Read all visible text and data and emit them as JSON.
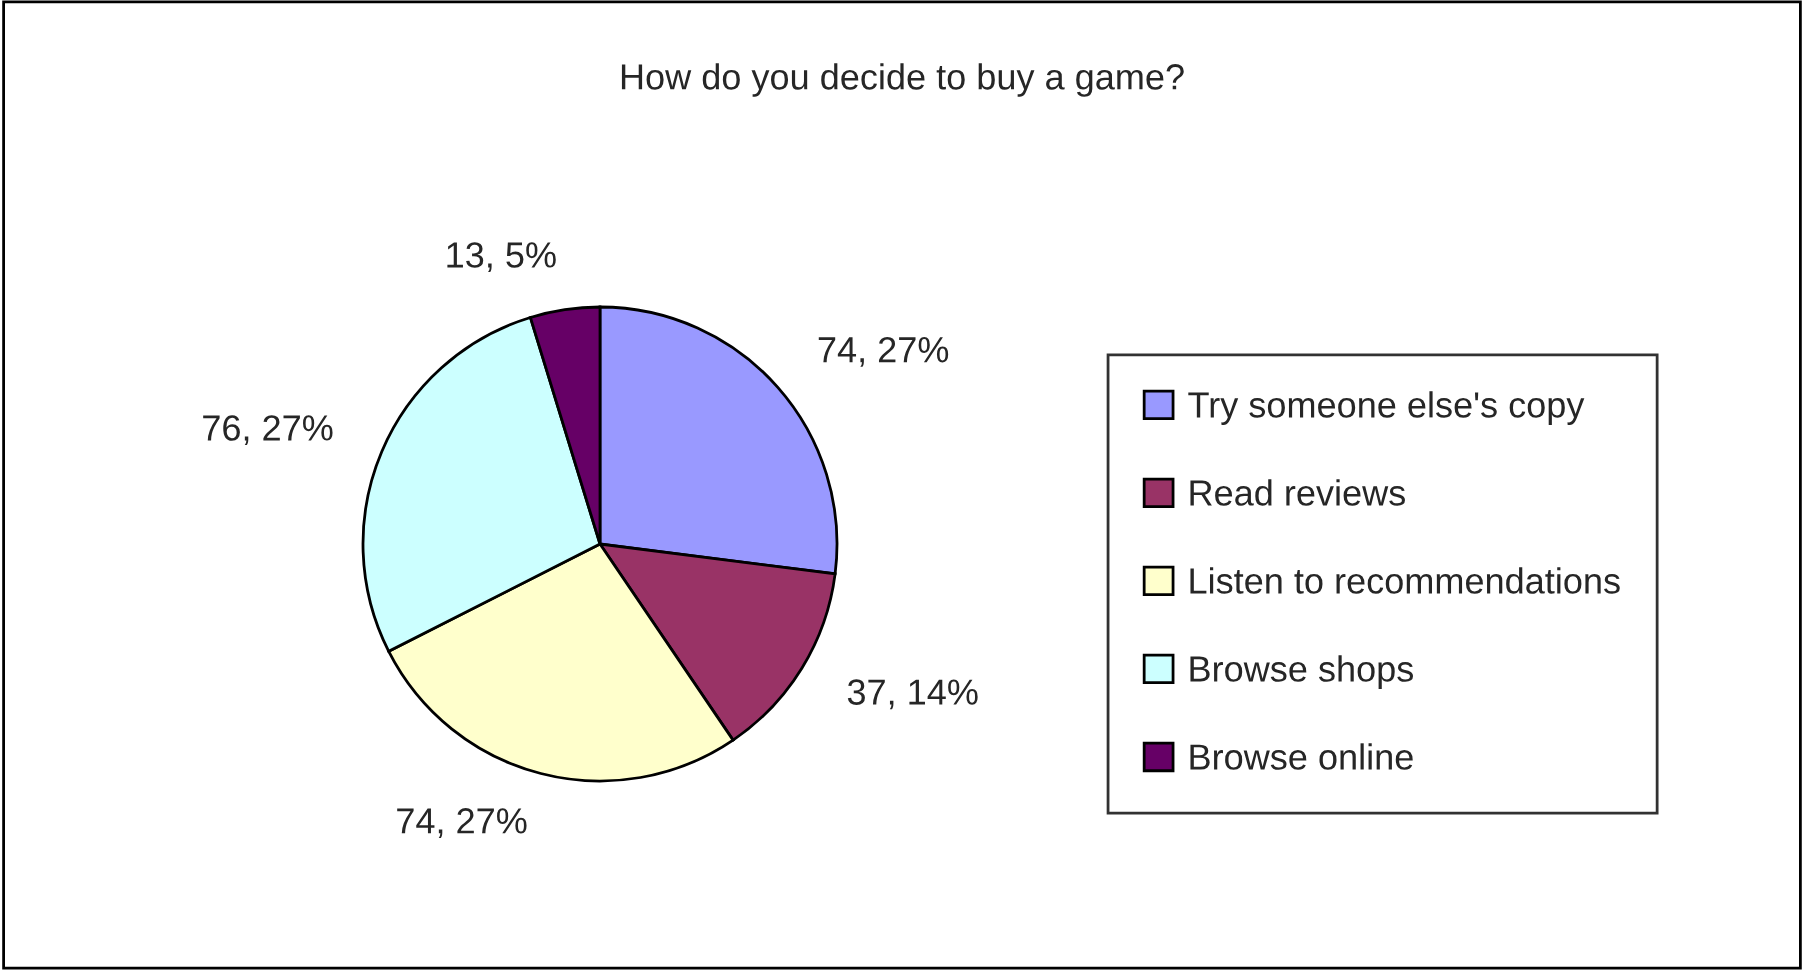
{
  "chart_data": {
    "type": "pie",
    "title": "How do you decide to buy a game?",
    "categories": [
      "Try someone else's copy",
      "Read reviews",
      "Listen to recommendations",
      "Browse shops",
      "Browse online"
    ],
    "values": [
      74,
      37,
      74,
      76,
      13
    ],
    "value_labels": [
      "74, 27%",
      "37, 14%",
      "74, 27%",
      "76, 27%",
      "13, 5%"
    ],
    "colors": [
      "#9999ff",
      "#993366",
      "#ffffcc",
      "#ccffff",
      "#660066"
    ],
    "legend": "right"
  }
}
